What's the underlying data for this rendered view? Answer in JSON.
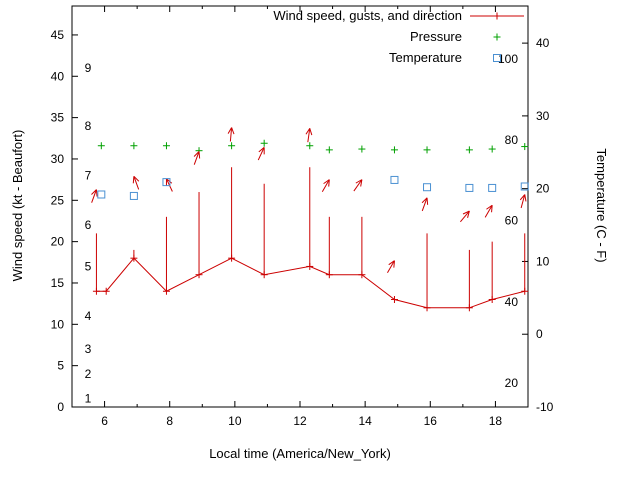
{
  "chart_data": {
    "type": "line",
    "title": "",
    "xlabel": "Local time (America/New_York)",
    "ylabel_left": "Wind speed (kt - Beaufort)",
    "ylabel_right": "Temperature (C - F)",
    "x_range": [
      5.0,
      19.0
    ],
    "x_ticks": [
      6,
      8,
      10,
      12,
      14,
      16,
      18
    ],
    "x_minor_ticks": [
      7,
      9,
      11,
      13,
      15,
      17
    ],
    "y_left": {
      "range": [
        0,
        48.5
      ],
      "ticks": [
        0,
        5,
        10,
        15,
        20,
        25,
        30,
        35,
        40,
        45
      ],
      "beaufort_labels": [
        {
          "label": "1",
          "value": 1
        },
        {
          "label": "2",
          "value": 4
        },
        {
          "label": "3",
          "value": 7
        },
        {
          "label": "4",
          "value": 11
        },
        {
          "label": "5",
          "value": 17
        },
        {
          "label": "6",
          "value": 22
        },
        {
          "label": "7",
          "value": 28
        },
        {
          "label": "8",
          "value": 34
        },
        {
          "label": "9",
          "value": 41
        }
      ]
    },
    "y_right": {
      "range": [
        -10,
        45.1
      ],
      "ticks": [
        -10,
        0,
        10,
        20,
        30,
        40
      ],
      "fahrenheit_labels": [
        {
          "label": "20",
          "value_c": -6.7
        },
        {
          "label": "40",
          "value_c": 4.4
        },
        {
          "label": "60",
          "value_c": 15.6
        },
        {
          "label": "80",
          "value_c": 26.7
        },
        {
          "label": "100",
          "value_c": 37.8
        }
      ]
    },
    "colors": {
      "wind": "#cc0000",
      "pressure": "#00a000",
      "temperature": "#4a90d2",
      "axis": "#000000"
    },
    "legend": [
      {
        "label": "Wind speed, gusts, and direction",
        "marker": "line-plus",
        "color": "#cc0000"
      },
      {
        "label": "Pressure",
        "marker": "plus",
        "color": "#00a000"
      },
      {
        "label": "Temperature",
        "marker": "open-square",
        "color": "#4a90d2"
      }
    ],
    "wind": [
      {
        "x": 5.75,
        "speed": 14,
        "gust": 21,
        "dir_y": 26.3,
        "dir_angle": 20
      },
      {
        "x": 6.05,
        "speed": 14,
        "gust": null,
        "dir_y": null,
        "dir_angle": null
      },
      {
        "x": 6.9,
        "speed": 18,
        "gust": 19,
        "dir_y": 27.9,
        "dir_angle": -20
      },
      {
        "x": 7.9,
        "speed": 14,
        "gust": 23,
        "dir_y": 27.6,
        "dir_angle": -25
      },
      {
        "x": 8.9,
        "speed": 16,
        "gust": 26,
        "dir_y": 30.9,
        "dir_angle": 20
      },
      {
        "x": 9.9,
        "speed": 18,
        "gust": 29,
        "dir_y": 33.8,
        "dir_angle": 5
      },
      {
        "x": 10.9,
        "speed": 16,
        "gust": 27,
        "dir_y": 31.4,
        "dir_angle": 25
      },
      {
        "x": 12.3,
        "speed": 17,
        "gust": 29,
        "dir_y": 33.7,
        "dir_angle": 8
      },
      {
        "x": 12.9,
        "speed": 16,
        "gust": 23,
        "dir_y": 27.5,
        "dir_angle": 30
      },
      {
        "x": 13.9,
        "speed": 16,
        "gust": 23,
        "dir_y": 27.5,
        "dir_angle": 35
      },
      {
        "x": 14.9,
        "speed": 13,
        "gust": null,
        "dir_y": 17.7,
        "dir_angle": 30
      },
      {
        "x": 15.9,
        "speed": 12,
        "gust": 21,
        "dir_y": 25.3,
        "dir_angle": 20
      },
      {
        "x": 17.2,
        "speed": 12,
        "gust": 19,
        "dir_y": 23.7,
        "dir_angle": 40
      },
      {
        "x": 17.9,
        "speed": 13,
        "gust": 20,
        "dir_y": 24.4,
        "dir_angle": 30
      },
      {
        "x": 18.9,
        "speed": 14,
        "gust": 21,
        "dir_y": 25.7,
        "dir_angle": 15
      }
    ],
    "pressure": [
      {
        "x": 5.9,
        "y": 31.6
      },
      {
        "x": 6.9,
        "y": 31.6
      },
      {
        "x": 7.9,
        "y": 31.6
      },
      {
        "x": 8.9,
        "y": 31.0
      },
      {
        "x": 9.9,
        "y": 31.6
      },
      {
        "x": 10.9,
        "y": 31.9
      },
      {
        "x": 12.3,
        "y": 31.6
      },
      {
        "x": 12.9,
        "y": 31.1
      },
      {
        "x": 13.9,
        "y": 31.2
      },
      {
        "x": 14.9,
        "y": 31.1
      },
      {
        "x": 15.9,
        "y": 31.1
      },
      {
        "x": 17.2,
        "y": 31.1
      },
      {
        "x": 17.9,
        "y": 31.2
      },
      {
        "x": 18.9,
        "y": 31.5
      }
    ],
    "temperature_c": [
      {
        "x": 5.9,
        "c": 19.2
      },
      {
        "x": 6.9,
        "c": 19.0
      },
      {
        "x": 7.9,
        "c": 20.9
      },
      {
        "x": 14.9,
        "c": 21.2
      },
      {
        "x": 15.9,
        "c": 20.2
      },
      {
        "x": 17.2,
        "c": 20.1
      },
      {
        "x": 17.9,
        "c": 20.1
      },
      {
        "x": 18.9,
        "c": 20.3
      }
    ]
  }
}
